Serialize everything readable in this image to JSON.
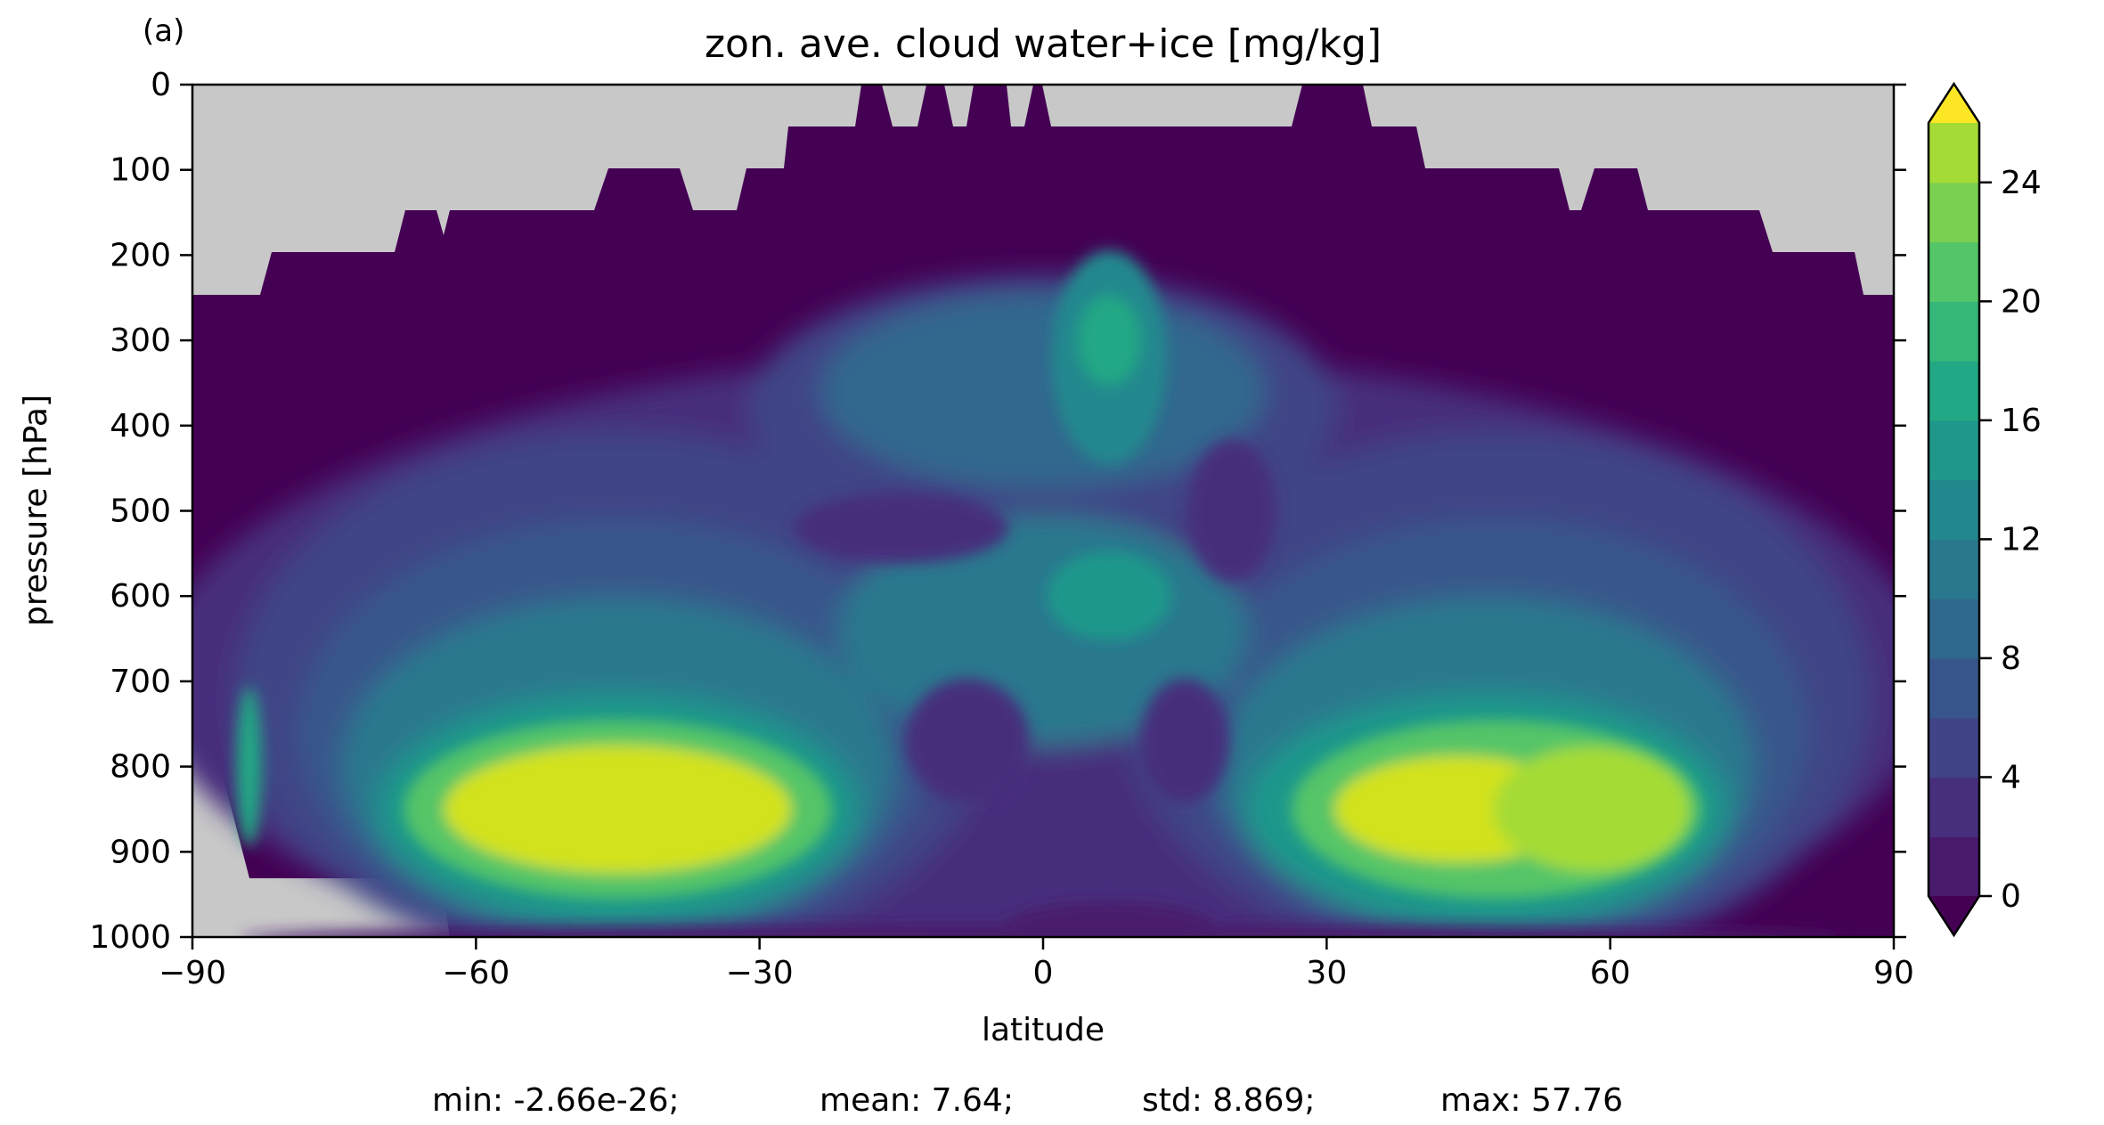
{
  "panel_label": "(a)",
  "chart_data": {
    "type": "heatmap",
    "subtype": "filled-contour",
    "title": "zon. ave. cloud water+ice [mg/kg]",
    "xlabel": "latitude",
    "ylabel": "pressure [hPa]",
    "xlim": [
      -90,
      90
    ],
    "ylim": [
      1000,
      0
    ],
    "y_inverted": true,
    "xticks": [
      -90,
      -60,
      -30,
      0,
      30,
      60,
      90
    ],
    "xtick_labels": [
      "−90",
      "−60",
      "−30",
      "0",
      "30",
      "60",
      "90"
    ],
    "yticks": [
      0,
      100,
      200,
      300,
      400,
      500,
      600,
      700,
      800,
      900,
      1000
    ],
    "ytick_labels": [
      "0",
      "100",
      "200",
      "300",
      "400",
      "500",
      "600",
      "700",
      "800",
      "900",
      "1000"
    ],
    "colorbar": {
      "levels": [
        0,
        2,
        4,
        6,
        8,
        10,
        12,
        14,
        16,
        18,
        20,
        22,
        24,
        26
      ],
      "ticks": [
        0,
        4,
        8,
        12,
        16,
        20,
        24
      ],
      "extend": "both",
      "colors": [
        "#440154",
        "#481a6c",
        "#472f7d",
        "#414487",
        "#39568c",
        "#31688e",
        "#2a788e",
        "#23888e",
        "#1f988b",
        "#22a884",
        "#35b779",
        "#54c568",
        "#7ad151",
        "#a5db36",
        "#d2e21b",
        "#fde725"
      ],
      "under_color": "#440154",
      "over_color": "#fde725"
    },
    "missing_color": "#c8c8c8",
    "features": [
      {
        "name": "southern-midlatitude-maximum",
        "lat": -45,
        "pressure": 850,
        "value": 26
      },
      {
        "name": "northern-midlatitude-maximum",
        "lat": 45,
        "pressure": 850,
        "value": 26
      },
      {
        "name": "tropical-upper-maximum",
        "lat": 7,
        "pressure": 300,
        "value": 18
      },
      {
        "name": "tropical-mid-maximum",
        "lat": 7,
        "pressure": 600,
        "value": 16
      },
      {
        "name": "upper-troposphere-minimum",
        "lat": 0,
        "pressure": 150,
        "value": 1
      }
    ],
    "stats_text": {
      "min": "min: -2.66e-26;",
      "mean": "mean: 7.64;",
      "std": "std: 8.869;",
      "max": "max: 57.76"
    }
  }
}
